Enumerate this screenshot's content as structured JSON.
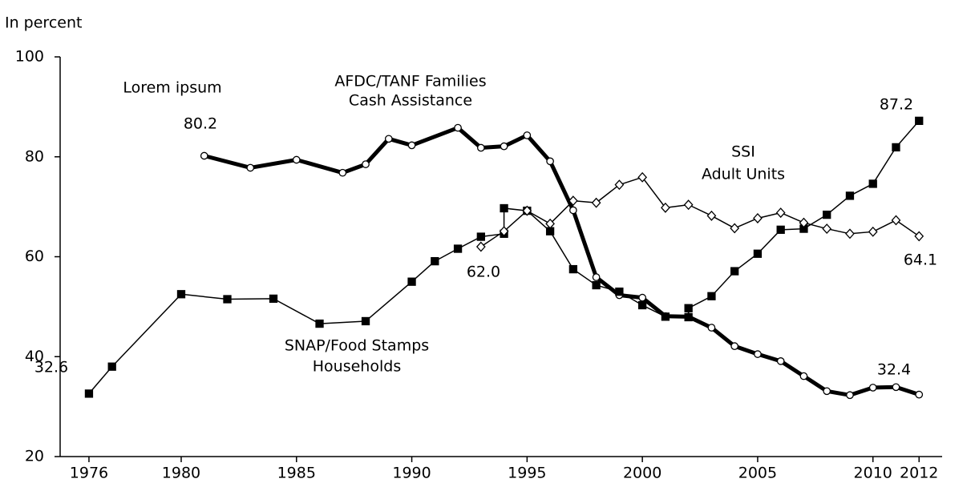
{
  "chart_data": {
    "type": "line",
    "y_label": "In percent",
    "annotation": "Lorem ipsum",
    "xlim": [
      1974.75,
      2013
    ],
    "ylim": [
      20,
      100
    ],
    "xticks": [
      1976,
      1980,
      1985,
      1990,
      1995,
      2000,
      2005,
      2010,
      2012
    ],
    "yticks": [
      20,
      40,
      60,
      80,
      100
    ],
    "grid": false,
    "series": [
      {
        "name_lines": [
          "AFDC/TANF Families",
          "Cash Assistance"
        ],
        "color": "#000000",
        "line_width": 5,
        "marker": "circle",
        "x": [
          1981,
          1983,
          1985,
          1987,
          1988,
          1989,
          1990,
          1992,
          1993,
          1994,
          1995,
          1996,
          1997,
          1998,
          1999,
          2000,
          2001,
          2002,
          2003,
          2004,
          2005,
          2006,
          2007,
          2008,
          2009,
          2010,
          2011,
          2012
        ],
        "values": [
          80.2,
          77.8,
          79.4,
          76.8,
          78.5,
          83.6,
          82.3,
          85.8,
          81.8,
          82.1,
          84.3,
          79.1,
          69.3,
          55.9,
          52.3,
          51.8,
          48.1,
          48.0,
          45.8,
          42.1,
          40.5,
          39.1,
          36.1,
          33.1,
          32.3,
          33.8,
          33.9,
          32.4
        ],
        "value_labels": [
          "80.2",
          null,
          null,
          null,
          null,
          null,
          null,
          null,
          null,
          null,
          null,
          null,
          null,
          null,
          null,
          null,
          null,
          null,
          null,
          null,
          null,
          null,
          null,
          null,
          null,
          null,
          null,
          "32.4"
        ]
      },
      {
        "name_lines": [
          "SNAP/Food Stamps",
          "Households"
        ],
        "color": "#000000",
        "line_width": 1.5,
        "marker": "square",
        "x": [
          1976,
          1977,
          1980,
          1982,
          1984,
          1986,
          1988,
          1990,
          1991,
          1992,
          1993,
          1994,
          1994,
          1995,
          1996,
          1997,
          1998,
          1999,
          2000,
          2001,
          2002,
          2002,
          2003,
          2004,
          2005,
          2006,
          2007,
          2008,
          2009,
          2010,
          2011,
          2012
        ],
        "values": [
          32.6,
          38.0,
          52.5,
          51.5,
          51.6,
          46.6,
          47.1,
          55.0,
          59.1,
          61.6,
          64.0,
          64.6,
          69.7,
          69.2,
          65.1,
          57.5,
          54.3,
          53.0,
          50.3,
          48.0,
          47.9,
          49.7,
          52.1,
          57.1,
          60.6,
          65.4,
          65.6,
          68.4,
          72.2,
          74.6,
          81.9,
          87.2
        ],
        "value_labels": [
          "32.6",
          null,
          null,
          null,
          null,
          null,
          null,
          null,
          null,
          null,
          null,
          null,
          null,
          null,
          null,
          null,
          null,
          null,
          null,
          null,
          null,
          null,
          null,
          null,
          null,
          null,
          null,
          null,
          null,
          null,
          null,
          "87.2"
        ]
      },
      {
        "name_lines": [
          "SSI",
          "Adult Units"
        ],
        "color": "#000000",
        "line_width": 1.5,
        "marker": "diamond",
        "x": [
          1993,
          1994,
          1995,
          1996,
          1997,
          1998,
          1999,
          2000,
          2001,
          2002,
          2003,
          2004,
          2005,
          2006,
          2007,
          2008,
          2009,
          2010,
          2011,
          2012
        ],
        "values": [
          62.0,
          65.1,
          69.2,
          66.6,
          71.2,
          70.8,
          74.4,
          75.9,
          69.8,
          70.4,
          68.2,
          65.7,
          67.7,
          68.8,
          66.8,
          65.6,
          64.6,
          65.0,
          67.3,
          64.1
        ],
        "value_labels": [
          "62.0",
          null,
          null,
          null,
          null,
          null,
          null,
          null,
          null,
          null,
          null,
          null,
          null,
          null,
          null,
          null,
          null,
          null,
          null,
          "64.1"
        ]
      }
    ]
  }
}
